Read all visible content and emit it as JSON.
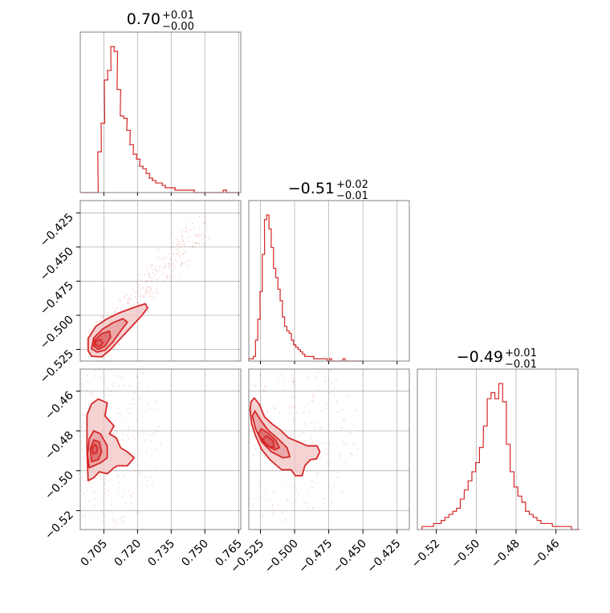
{
  "figure": {
    "type": "corner_plot"
  },
  "colors": {
    "accent": "#d62728",
    "fill_light": "#f2c4c4",
    "fill_mid": "#e79b9b",
    "fill_dark": "#d95f5f",
    "grid": "#b0b0b0",
    "axis": "#808080"
  },
  "titles": [
    {
      "value": "0.70",
      "plus": "+0.01",
      "minus": "−0.00"
    },
    {
      "value": "−0.51",
      "plus": "+0.02",
      "minus": "−0.01"
    },
    {
      "value": "−0.49",
      "plus": "+0.01",
      "minus": "−0.01"
    }
  ],
  "ticks": {
    "p0": {
      "values": [
        0.705,
        0.72,
        0.735,
        0.75,
        0.765
      ],
      "labels": [
        "0.705",
        "0.720",
        "0.735",
        "0.750",
        "0.765"
      ]
    },
    "p1": {
      "values": [
        -0.525,
        -0.5,
        -0.475,
        -0.45,
        -0.425
      ],
      "labels": [
        "−0.525",
        "−0.500",
        "−0.475",
        "−0.450",
        "−0.425"
      ]
    },
    "p2": {
      "values": [
        -0.52,
        -0.5,
        -0.48,
        -0.46
      ],
      "labels": [
        "−0.52",
        "−0.50",
        "−0.48",
        "−0.46"
      ]
    }
  },
  "chart_data": [
    {
      "type": "histogram",
      "parameter_index": 0,
      "xlim": [
        0.6945,
        0.766
      ],
      "bin_centers": [
        0.6958,
        0.6974,
        0.6988,
        0.7003,
        0.7017,
        0.7031,
        0.7046,
        0.706,
        0.7074,
        0.7089,
        0.7103,
        0.7117,
        0.7131,
        0.7146,
        0.716,
        0.7174,
        0.7189,
        0.7203,
        0.7217,
        0.7231,
        0.7246,
        0.726,
        0.7274,
        0.7289,
        0.7303,
        0.7317,
        0.7331,
        0.7346,
        0.736,
        0.7374,
        0.7389,
        0.7403,
        0.7417,
        0.7431,
        0.7446,
        0.746,
        0.7474,
        0.7489,
        0.7503,
        0.7517,
        0.7531,
        0.7546,
        0.756,
        0.7574,
        0.7589,
        0.7603,
        0.7617,
        0.7631,
        0.7646
      ],
      "counts": [
        0,
        0,
        0,
        0,
        0,
        17,
        29,
        47,
        51,
        61,
        59,
        43,
        32,
        31,
        26,
        20,
        16,
        14,
        11,
        10,
        8,
        6,
        5,
        4,
        4,
        3,
        2,
        2,
        2,
        1,
        1,
        1,
        1,
        1,
        1,
        0,
        0,
        0,
        0,
        0,
        0,
        0,
        0,
        0,
        1,
        0,
        0,
        0,
        0
      ]
    },
    {
      "type": "histogram",
      "parameter_index": 1,
      "xlim": [
        -0.5335,
        -0.416
      ],
      "bin_centers": [
        -0.5327,
        -0.531,
        -0.5294,
        -0.5278,
        -0.5261,
        -0.5245,
        -0.5228,
        -0.5212,
        -0.5196,
        -0.5179,
        -0.5163,
        -0.5146,
        -0.513,
        -0.5114,
        -0.5097,
        -0.5081,
        -0.5065,
        -0.5048,
        -0.5032,
        -0.5015,
        -0.4999,
        -0.4983,
        -0.4966,
        -0.495,
        -0.4934,
        -0.4917,
        -0.4901,
        -0.4884,
        -0.4868,
        -0.4852,
        -0.4835,
        -0.4819,
        -0.4802,
        -0.4786,
        -0.477,
        -0.4753,
        -0.4737,
        -0.472,
        -0.4704,
        -0.4688,
        -0.4671,
        -0.4655,
        -0.4638,
        -0.4622,
        -0.4606,
        -0.4589,
        -0.4573,
        -0.4557,
        -0.454,
        -0.4524,
        -0.4507
      ],
      "counts": [
        1,
        1,
        2,
        9,
        18,
        30,
        46,
        61,
        63,
        57,
        49,
        40,
        36,
        31,
        26,
        19,
        15,
        13,
        12,
        9,
        7,
        6,
        5,
        4,
        3,
        2,
        2,
        2,
        2,
        1,
        1,
        1,
        1,
        1,
        1,
        0,
        1,
        0,
        0,
        0,
        0,
        0,
        1,
        0,
        0,
        0,
        0,
        0,
        0,
        0,
        0
      ]
    },
    {
      "type": "histogram",
      "parameter_index": 2,
      "xlim": [
        -0.5295,
        -0.449
      ],
      "bin_centers": [
        -0.5262,
        -0.5243,
        -0.5223,
        -0.5204,
        -0.5185,
        -0.5166,
        -0.5147,
        -0.5127,
        -0.5108,
        -0.5089,
        -0.507,
        -0.505,
        -0.5031,
        -0.5012,
        -0.4993,
        -0.4974,
        -0.4954,
        -0.4935,
        -0.4916,
        -0.4897,
        -0.4877,
        -0.4858,
        -0.4839,
        -0.482,
        -0.4801,
        -0.4781,
        -0.4762,
        -0.4743,
        -0.4724,
        -0.4705,
        -0.4685,
        -0.4666,
        -0.4647,
        -0.4628,
        -0.4608,
        -0.4589,
        -0.457,
        -0.4551,
        -0.4532,
        -0.4512,
        -0.4493
      ],
      "counts": [
        1,
        1,
        1,
        2,
        2,
        3,
        4,
        5,
        6,
        7,
        10,
        13,
        16,
        19,
        22,
        27,
        34,
        43,
        45,
        43,
        48,
        42,
        28,
        19,
        14,
        11,
        9,
        6,
        5,
        4,
        3,
        2,
        2,
        2,
        1,
        1,
        1,
        1,
        1,
        0,
        0
      ]
    },
    {
      "type": "2d_density",
      "x_param": 0,
      "y_param": 1,
      "xlim": [
        0.6945,
        0.766
      ],
      "ylim": [
        -0.5335,
        -0.416
      ],
      "contour_levels": [
        [
          [
            0.698,
            -0.526
          ],
          [
            0.6995,
            -0.53
          ],
          [
            0.704,
            -0.5305
          ],
          [
            0.708,
            -0.525
          ],
          [
            0.713,
            -0.516
          ],
          [
            0.7175,
            -0.508
          ],
          [
            0.722,
            -0.5
          ],
          [
            0.7245,
            -0.4945
          ],
          [
            0.7235,
            -0.4915
          ],
          [
            0.718,
            -0.4945
          ],
          [
            0.7115,
            -0.4985
          ],
          [
            0.7065,
            -0.5025
          ],
          [
            0.7015,
            -0.508
          ],
          [
            0.698,
            -0.517
          ]
        ],
        [
          [
            0.6995,
            -0.5245
          ],
          [
            0.702,
            -0.527
          ],
          [
            0.7055,
            -0.5255
          ],
          [
            0.709,
            -0.5195
          ],
          [
            0.7125,
            -0.5115
          ],
          [
            0.7155,
            -0.505
          ],
          [
            0.7135,
            -0.5025
          ],
          [
            0.709,
            -0.5055
          ],
          [
            0.7045,
            -0.51
          ],
          [
            0.7005,
            -0.5165
          ]
        ],
        [
          [
            0.7005,
            -0.5225
          ],
          [
            0.7025,
            -0.525
          ],
          [
            0.7055,
            -0.5225
          ],
          [
            0.708,
            -0.516
          ],
          [
            0.7075,
            -0.5115
          ],
          [
            0.704,
            -0.5135
          ],
          [
            0.701,
            -0.518
          ]
        ],
        [
          [
            0.7012,
            -0.5215
          ],
          [
            0.703,
            -0.523
          ],
          [
            0.7045,
            -0.5205
          ],
          [
            0.7035,
            -0.5175
          ],
          [
            0.7015,
            -0.519
          ]
        ]
      ]
    },
    {
      "type": "2d_density",
      "x_param": 0,
      "y_param": 2,
      "xlim": [
        0.6945,
        0.766
      ],
      "ylim": [
        -0.5295,
        -0.449
      ],
      "contour_levels": [
        [
          [
            0.698,
            -0.505
          ],
          [
            0.7005,
            -0.5035
          ],
          [
            0.703,
            -0.5005
          ],
          [
            0.7065,
            -0.5015
          ],
          [
            0.7095,
            -0.4985
          ],
          [
            0.711,
            -0.4975
          ],
          [
            0.7155,
            -0.4975
          ],
          [
            0.7185,
            -0.4935
          ],
          [
            0.7155,
            -0.4905
          ],
          [
            0.7125,
            -0.4885
          ],
          [
            0.7105,
            -0.4835
          ],
          [
            0.7075,
            -0.4815
          ],
          [
            0.7095,
            -0.4775
          ],
          [
            0.7055,
            -0.4725
          ],
          [
            0.7065,
            -0.466
          ],
          [
            0.7025,
            -0.464
          ],
          [
            0.6995,
            -0.4665
          ],
          [
            0.6975,
            -0.472
          ],
          [
            0.6975,
            -0.49
          ]
        ],
        [
          [
            0.6985,
            -0.4985
          ],
          [
            0.7005,
            -0.4975
          ],
          [
            0.7035,
            -0.496
          ],
          [
            0.7065,
            -0.4935
          ],
          [
            0.7065,
            -0.4875
          ],
          [
            0.7035,
            -0.4815
          ],
          [
            0.7005,
            -0.48
          ],
          [
            0.6985,
            -0.484
          ],
          [
            0.6978,
            -0.492
          ]
        ],
        [
          [
            0.6995,
            -0.4955
          ],
          [
            0.7025,
            -0.4945
          ],
          [
            0.704,
            -0.4905
          ],
          [
            0.703,
            -0.4855
          ],
          [
            0.7005,
            -0.4845
          ],
          [
            0.699,
            -0.489
          ]
        ],
        [
          [
            0.7003,
            -0.4915
          ],
          [
            0.7018,
            -0.491
          ],
          [
            0.7022,
            -0.4885
          ],
          [
            0.701,
            -0.4868
          ],
          [
            0.6998,
            -0.4885
          ]
        ]
      ]
    },
    {
      "type": "2d_density",
      "x_param": 1,
      "y_param": 2,
      "xlim": [
        -0.5335,
        -0.416
      ],
      "ylim": [
        -0.5295,
        -0.449
      ],
      "contour_levels": [
        [
          [
            -0.5325,
            -0.4695
          ],
          [
            -0.5315,
            -0.4765
          ],
          [
            -0.5285,
            -0.4825
          ],
          [
            -0.524,
            -0.4895
          ],
          [
            -0.518,
            -0.4945
          ],
          [
            -0.5095,
            -0.4995
          ],
          [
            -0.5025,
            -0.4995
          ],
          [
            -0.4995,
            -0.5025
          ],
          [
            -0.4945,
            -0.5025
          ],
          [
            -0.4925,
            -0.4975
          ],
          [
            -0.4885,
            -0.4945
          ],
          [
            -0.484,
            -0.494
          ],
          [
            -0.4815,
            -0.4905
          ],
          [
            -0.4835,
            -0.4875
          ],
          [
            -0.4905,
            -0.4875
          ],
          [
            -0.4975,
            -0.4855
          ],
          [
            -0.5045,
            -0.4835
          ],
          [
            -0.5105,
            -0.4795
          ],
          [
            -0.5165,
            -0.4765
          ],
          [
            -0.522,
            -0.473
          ],
          [
            -0.526,
            -0.4665
          ],
          [
            -0.5295,
            -0.4635
          ],
          [
            -0.532,
            -0.4655
          ]
        ],
        [
          [
            -0.531,
            -0.4725
          ],
          [
            -0.5285,
            -0.479
          ],
          [
            -0.524,
            -0.4855
          ],
          [
            -0.517,
            -0.4905
          ],
          [
            -0.5085,
            -0.4935
          ],
          [
            -0.5035,
            -0.493
          ],
          [
            -0.5055,
            -0.4885
          ],
          [
            -0.512,
            -0.484
          ],
          [
            -0.5195,
            -0.4795
          ],
          [
            -0.525,
            -0.4745
          ],
          [
            -0.529,
            -0.47
          ]
        ],
        [
          [
            -0.5265,
            -0.4815
          ],
          [
            -0.5215,
            -0.487
          ],
          [
            -0.5145,
            -0.4895
          ],
          [
            -0.511,
            -0.4885
          ],
          [
            -0.514,
            -0.4845
          ],
          [
            -0.5195,
            -0.481
          ],
          [
            -0.5245,
            -0.479
          ]
        ],
        [
          [
            -0.5235,
            -0.4845
          ],
          [
            -0.519,
            -0.4878
          ],
          [
            -0.515,
            -0.4882
          ],
          [
            -0.5158,
            -0.485
          ],
          [
            -0.5205,
            -0.4825
          ]
        ]
      ]
    }
  ]
}
